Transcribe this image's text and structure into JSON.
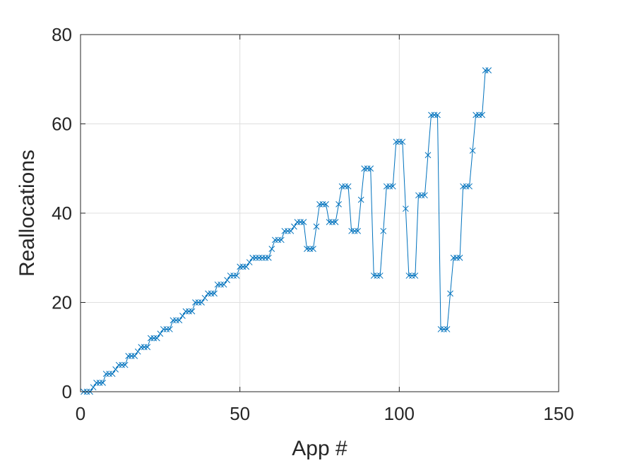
{
  "chart_data": {
    "type": "line",
    "title": "",
    "xlabel": "App #",
    "ylabel": "Reallocations",
    "xlim": [
      0,
      150
    ],
    "ylim": [
      0,
      80
    ],
    "xticks": [
      "0",
      "50",
      "100",
      "150"
    ],
    "yticks": [
      "0",
      "20",
      "40",
      "60",
      "80"
    ],
    "grid": true,
    "marker": "x",
    "color": "#0072BD",
    "series": [
      {
        "x": [
          1,
          2,
          3,
          4,
          5,
          6,
          7,
          8,
          9,
          10,
          11,
          12,
          13,
          14,
          15,
          16,
          17,
          18,
          19,
          20,
          21,
          22,
          23,
          24,
          25,
          26,
          27,
          28,
          29,
          30,
          31,
          32,
          33,
          34,
          35,
          36,
          37,
          38,
          39,
          40,
          41,
          42,
          43,
          44,
          45,
          46,
          47,
          48,
          49,
          50,
          51,
          52,
          53,
          54,
          55,
          56,
          57,
          58,
          59,
          60,
          61,
          62,
          63,
          64,
          65,
          66,
          67,
          68,
          69,
          70,
          71,
          72,
          73,
          74,
          75,
          76,
          77,
          78,
          79,
          80,
          81,
          82,
          83,
          84,
          85,
          86,
          87,
          88,
          89,
          90,
          91,
          92,
          93,
          94,
          95,
          96,
          97,
          98,
          99,
          100,
          101,
          102,
          103,
          104,
          105,
          106,
          107,
          108,
          109,
          110,
          111,
          112,
          113,
          114,
          115,
          116,
          117,
          118,
          119,
          120,
          121,
          122,
          123,
          124,
          125,
          126,
          127,
          128
        ],
        "values": [
          0,
          0,
          0,
          1,
          2,
          2,
          2,
          4,
          4,
          4,
          5,
          6,
          6,
          6,
          8,
          8,
          8,
          9,
          10,
          10,
          10,
          12,
          12,
          12,
          13,
          14,
          14,
          14,
          16,
          16,
          16,
          17,
          18,
          18,
          18,
          20,
          20,
          20,
          21,
          22,
          22,
          22,
          24,
          24,
          24,
          25,
          26,
          26,
          26,
          28,
          28,
          28,
          29,
          30,
          30,
          30,
          30,
          30,
          30,
          32,
          34,
          34,
          34,
          36,
          36,
          36,
          37,
          38,
          38,
          38,
          32,
          32,
          32,
          37,
          42,
          42,
          42,
          38,
          38,
          38,
          42,
          46,
          46,
          46,
          36,
          36,
          36,
          43,
          50,
          50,
          50,
          26,
          26,
          26,
          36,
          46,
          46,
          46,
          56,
          56,
          56,
          41,
          26,
          26,
          26,
          44,
          44,
          44,
          53,
          62,
          62,
          62,
          14,
          14,
          14,
          22,
          30,
          30,
          30,
          46,
          46,
          46,
          54,
          62,
          62,
          62,
          72,
          72
        ]
      }
    ]
  }
}
